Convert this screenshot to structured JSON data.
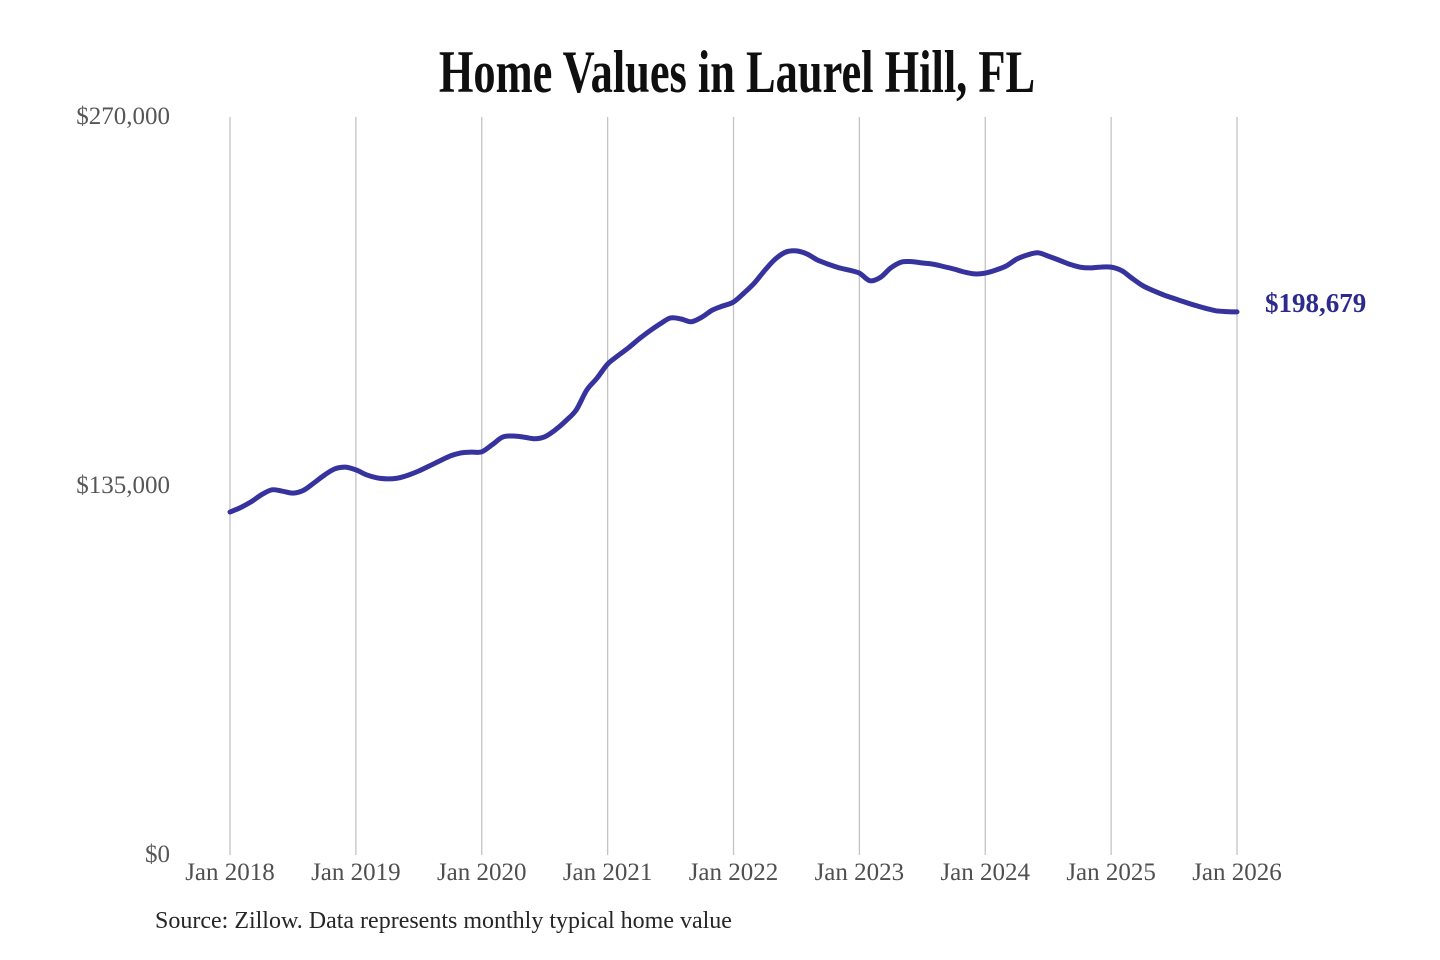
{
  "source_note": "Source: Zillow. Data represents monthly typical home value",
  "colors": {
    "line": "#37339e",
    "end_label": "#2c2a8c",
    "title": "#0f0f0f",
    "y_axis_text": "#565656",
    "x_axis_text": "#4f4f4f",
    "gridline": "#c3c3c3",
    "source_text": "#262626",
    "background": "#ffffff"
  },
  "chart_data": {
    "type": "line",
    "title": "Home Values in Laurel Hill, FL",
    "xlabel": "",
    "ylabel": "",
    "x_interval": "monthly",
    "x_range": [
      "Jan 2018",
      "Jan 2026"
    ],
    "x_tick_labels": [
      "Jan 2018",
      "Jan 2019",
      "Jan 2020",
      "Jan 2021",
      "Jan 2022",
      "Jan 2023",
      "Jan 2024",
      "Jan 2025",
      "Jan 2026"
    ],
    "y_tick_labels": [
      "$0",
      "$135,000",
      "$270,000"
    ],
    "y_tick_values": [
      0,
      135000,
      270000
    ],
    "ylim": [
      0,
      270000
    ],
    "grid": "vertical-only",
    "legend_position": "none",
    "end_value_label": "$198,679",
    "series": [
      {
        "name": "Monthly typical home value",
        "values": [
          125500,
          127100,
          129200,
          131800,
          133600,
          133100,
          132400,
          133400,
          136100,
          139000,
          141300,
          141900,
          140900,
          139100,
          138000,
          137600,
          137900,
          139000,
          140500,
          142300,
          144200,
          146000,
          147100,
          147400,
          147500,
          150100,
          152900,
          153300,
          152900,
          152300,
          153000,
          155500,
          158800,
          162800,
          170000,
          174500,
          179600,
          182700,
          185600,
          188800,
          191700,
          194300,
          196500,
          196100,
          195100,
          196800,
          199400,
          200900,
          202300,
          205600,
          209300,
          214000,
          218100,
          220600,
          221000,
          219900,
          217700,
          216200,
          214900,
          214000,
          212900,
          210100,
          211300,
          214800,
          216900,
          217100,
          216600,
          216200,
          215300,
          214400,
          213300,
          212600,
          212900,
          214000,
          215500,
          218000,
          219500,
          220300,
          219100,
          217700,
          216200,
          215100,
          214800,
          215100,
          215100,
          213800,
          211000,
          208300,
          206500,
          204900,
          203600,
          202300,
          201100,
          200000,
          199100,
          198800,
          198679
        ]
      }
    ]
  }
}
